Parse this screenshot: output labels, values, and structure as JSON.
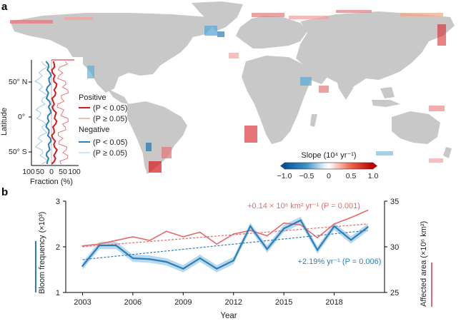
{
  "panel_a": {
    "letter": "a",
    "inset": {
      "ylabel": "Latitude",
      "xlabel": "Fraction (%)",
      "yticks": [
        "50° N",
        "0°",
        "50° S"
      ],
      "xticks": [
        "100",
        "50",
        "0",
        "50",
        "100"
      ]
    },
    "legend": {
      "positive_title": "Positive",
      "positive_sig": "(P < 0.05)",
      "positive_nonsig": "(P ≥ 0.05)",
      "negative_title": "Negative",
      "negative_sig": "(P < 0.05)",
      "negative_nonsig": "(P ≥ 0.05)"
    },
    "colorbar": {
      "title": "Slope (10⁴ yr⁻¹)",
      "ticks": [
        "−1.0",
        "−0.5",
        "0",
        "0.5",
        "1.0"
      ],
      "range": [
        -1.0,
        1.0
      ]
    },
    "colors": {
      "land": "#c8c8c8",
      "positive": "#d7191c",
      "negative": "#2c7fb8",
      "light_blue": "#9ecae1",
      "light_red": "#f4a582"
    }
  },
  "panel_b": {
    "letter": "b",
    "xlabel": "Year",
    "ylabel_left": "Bloom frequency (×10³)",
    "ylabel_right": "Affected area (×10⁶ km²)",
    "annot_area": "+0.14 × 10⁶ km² yr⁻¹ (P = 0.001)",
    "annot_freq": "+2.19% yr⁻¹ (P = 0.006)",
    "colors": {
      "frequency": "#2c7fb8",
      "band": "#a6cfe8",
      "area": "#e36b6b"
    }
  },
  "chart_data": {
    "type": "line",
    "title": "",
    "xlabel": "Year",
    "ylabel": "Bloom frequency (×10³)",
    "y2label": "Affected area (×10⁶ km²)",
    "x": [
      2003,
      2004,
      2005,
      2006,
      2007,
      2008,
      2009,
      2010,
      2011,
      2012,
      2013,
      2014,
      2015,
      2016,
      2017,
      2018,
      2019,
      2020
    ],
    "xlim": [
      2002,
      2021
    ],
    "xticks": [
      2003,
      2006,
      2009,
      2012,
      2015,
      2018
    ],
    "ylim": [
      1,
      3
    ],
    "yticks": [
      1,
      2,
      3
    ],
    "y2lim": [
      25,
      35
    ],
    "y2ticks": [
      25,
      30,
      35
    ],
    "series": [
      {
        "name": "Bloom frequency",
        "axis": "left",
        "values": [
          1.58,
          2.03,
          2.03,
          1.75,
          1.73,
          1.67,
          1.52,
          1.75,
          1.52,
          1.7,
          2.45,
          1.95,
          2.4,
          2.58,
          1.93,
          2.45,
          2.15,
          2.43
        ],
        "ci": 0.08,
        "trend": [
          1.72,
          2.36
        ]
      },
      {
        "name": "Affected area",
        "axis": "right",
        "values": [
          30.1,
          30.3,
          30.7,
          31.1,
          30.7,
          31.7,
          31.1,
          31.6,
          30.3,
          31.4,
          31.8,
          31.2,
          32.6,
          32.4,
          31.0,
          32.5,
          33.2,
          34.0
        ],
        "trend": [
          30.0,
          32.5
        ]
      }
    ]
  }
}
